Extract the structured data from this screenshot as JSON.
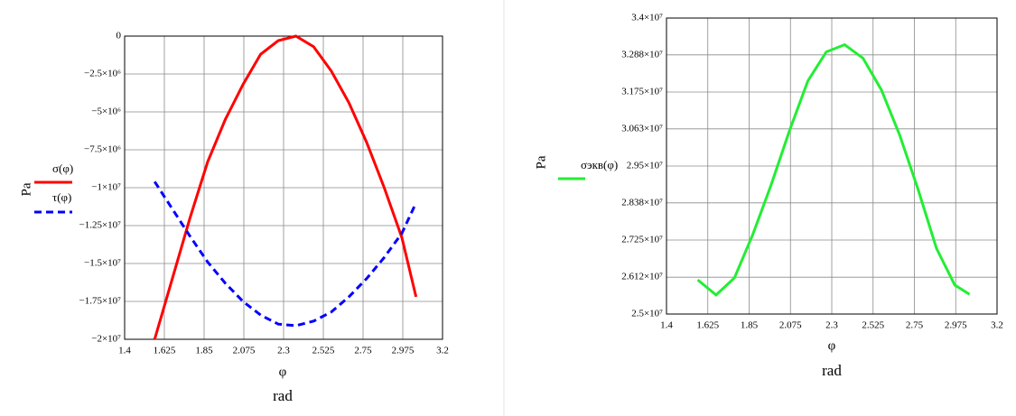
{
  "chart_data": [
    {
      "type": "line",
      "ylabel": "Pa",
      "xlabel": "φ",
      "xunit": "rad",
      "grid": true,
      "x": [
        1.57,
        1.67,
        1.77,
        1.87,
        1.97,
        2.07,
        2.17,
        2.27,
        2.37,
        2.47,
        2.57,
        2.67,
        2.77,
        2.87,
        2.97,
        3.05
      ],
      "xlim": [
        1.4,
        3.2
      ],
      "xticks": [
        1.4,
        1.625,
        1.85,
        2.075,
        2.3,
        2.525,
        2.75,
        2.975,
        3.2
      ],
      "ylim": [
        -20000000,
        0
      ],
      "yticks": [
        {
          "value": -20000000,
          "label": "−2×10⁷"
        },
        {
          "value": -17500000,
          "label": "−1.75×10⁷"
        },
        {
          "value": -15000000,
          "label": "−1.5×10⁷"
        },
        {
          "value": -12500000,
          "label": "−1.25×10⁷"
        },
        {
          "value": -10000000,
          "label": "−1×10⁷"
        },
        {
          "value": -7500000,
          "label": "−7.5×10⁶"
        },
        {
          "value": -5000000,
          "label": "−5×10⁶"
        },
        {
          "value": -2500000,
          "label": "−2.5×10⁶"
        },
        0
      ],
      "series": [
        {
          "name": "σ(φ)",
          "color": "#ff0000",
          "dashed": false,
          "values": [
            -20000000,
            -16000000,
            -12000000,
            -8300000,
            -5500000,
            -3200000,
            -1200000,
            -300000,
            0,
            -700000,
            -2300000,
            -4400000,
            -7000000,
            -10000000,
            -13300000,
            -17200000
          ]
        },
        {
          "name": "τ(φ)",
          "color": "#0000ff",
          "dashed": true,
          "values": [
            -9600000,
            -11400000,
            -13200000,
            -14900000,
            -16300000,
            -17500000,
            -18400000,
            -19000000,
            -19100000,
            -18800000,
            -18200000,
            -17200000,
            -16000000,
            -14600000,
            -13000000,
            -11000000
          ]
        }
      ]
    },
    {
      "type": "line",
      "ylabel": "Pa",
      "xlabel": "φ",
      "xunit": "rad",
      "grid": true,
      "x": [
        1.57,
        1.67,
        1.77,
        1.87,
        1.97,
        2.07,
        2.17,
        2.27,
        2.37,
        2.47,
        2.57,
        2.67,
        2.77,
        2.87,
        2.97,
        3.05
      ],
      "xlim": [
        1.4,
        3.2
      ],
      "xticks": [
        1.4,
        1.625,
        1.85,
        2.075,
        2.3,
        2.525,
        2.75,
        2.975,
        3.2
      ],
      "ylim": [
        25000000,
        34000000
      ],
      "yticks": [
        {
          "value": 25000000,
          "label": "2.5×10⁷"
        },
        {
          "value": 26120000,
          "label": "2.612×10⁷"
        },
        {
          "value": 27250000,
          "label": "2.725×10⁷"
        },
        {
          "value": 28380000,
          "label": "2.838×10⁷"
        },
        {
          "value": 29500000,
          "label": "2.95×10⁷"
        },
        {
          "value": 30630000,
          "label": "3.063×10⁷"
        },
        {
          "value": 31750000,
          "label": "3.175×10⁷"
        },
        {
          "value": 32880000,
          "label": "3.288×10⁷"
        },
        {
          "value": 34000000,
          "label": "3.4×10⁷"
        }
      ],
      "series": [
        {
          "name": "σэкв(φ)",
          "color": "#22ee33",
          "dashed": false,
          "values": [
            26040000,
            25580000,
            26100000,
            27420000,
            28930000,
            30580000,
            32090000,
            32970000,
            33190000,
            32780000,
            31820000,
            30440000,
            28790000,
            27000000,
            25880000,
            25600000
          ]
        }
      ]
    }
  ]
}
